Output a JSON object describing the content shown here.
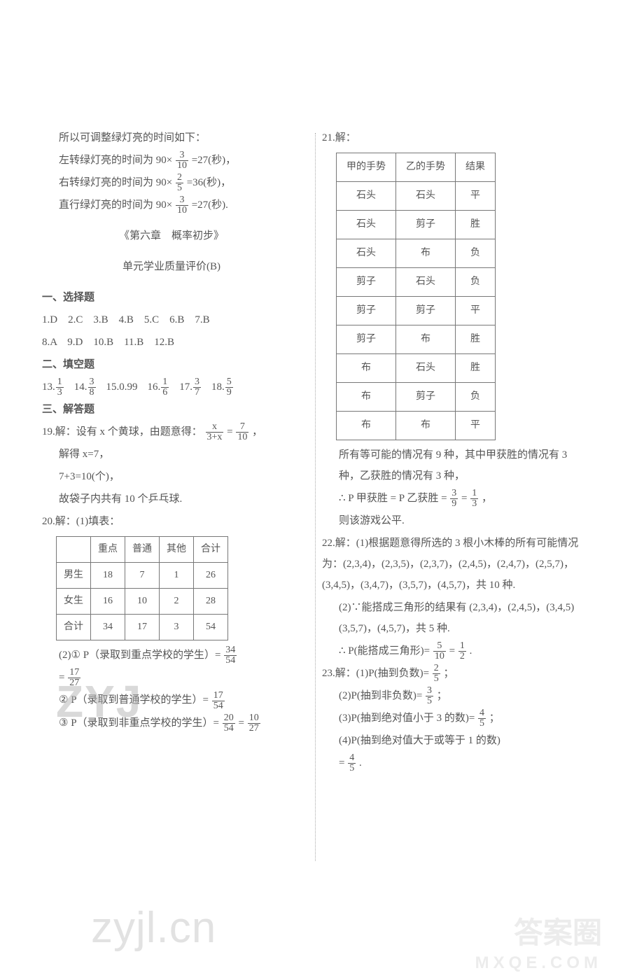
{
  "left": {
    "intro": "所以可调整绿灯亮的时间如下：",
    "l1a": "左转绿灯亮的时间为 90×",
    "l1f": {
      "n": "3",
      "d": "10"
    },
    "l1b": "=27(秒)，",
    "l2a": "右转绿灯亮的时间为 90×",
    "l2f": {
      "n": "2",
      "d": "5"
    },
    "l2b": "=36(秒)，",
    "l3a": "直行绿灯亮的时间为 90×",
    "l3f": {
      "n": "3",
      "d": "10"
    },
    "l3b": "=27(秒).",
    "chapter_title": "《第六章　概率初步》",
    "chapter_sub": "单元学业质量评价(B)",
    "sec1": "一、选择题",
    "mc1": "1.D　2.C　3.B　4.B　5.C　6.B　7.B",
    "mc2": "8.A　9.D　10.B　11.B　12.B",
    "sec2": "二、填空题",
    "fb": [
      {
        "pre": "13.",
        "n": "1",
        "d": "3"
      },
      {
        "pre": "14.",
        "n": "3",
        "d": "8"
      },
      {
        "pre": "15.",
        "text": "0.99"
      },
      {
        "pre": "16.",
        "n": "1",
        "d": "6"
      },
      {
        "pre": "17.",
        "n": "3",
        "d": "7"
      },
      {
        "pre": "18.",
        "n": "5",
        "d": "9"
      }
    ],
    "sec3": "三、解答题",
    "q19a": "19.解：设有 x 个黄球，由题意得：",
    "q19f1": {
      "n": "x",
      "d": "3+x"
    },
    "q19mid": "=",
    "q19f2": {
      "n": "7",
      "d": "10"
    },
    "q19tail": "，",
    "q19b": "解得 x=7，",
    "q19c": "7+3=10(个)，",
    "q19d": "故袋子内共有 10 个乒乓球.",
    "q20a": "20.解：(1)填表：",
    "table20": {
      "columns": [
        "",
        "重点",
        "普通",
        "其他",
        "合计"
      ],
      "rows": [
        [
          "男生",
          "18",
          "7",
          "1",
          "26"
        ],
        [
          "女生",
          "16",
          "10",
          "2",
          "28"
        ],
        [
          "合计",
          "34",
          "17",
          "3",
          "54"
        ]
      ]
    },
    "q20b1": "(2)① P（录取到重点学校的学生）=",
    "q20b1f": {
      "n": "34",
      "d": "54"
    },
    "q20b1eq": "=",
    "q20b1f2": {
      "n": "17",
      "d": "27"
    },
    "q20c1": "② P（录取到普通学校的学生）=",
    "q20c1f": {
      "n": "17",
      "d": "54"
    },
    "q20d1": "③ P（录取到非重点学校的学生）=",
    "q20d1f": {
      "n": "20",
      "d": "54"
    },
    "q20d1eq": "=",
    "q20d1f2": {
      "n": "10",
      "d": "27"
    }
  },
  "right": {
    "q21": "21.解：",
    "table21": {
      "columns": [
        "甲的手势",
        "乙的手势",
        "结果"
      ],
      "rows": [
        [
          "石头",
          "石头",
          "平"
        ],
        [
          "石头",
          "剪子",
          "胜"
        ],
        [
          "石头",
          "布",
          "负"
        ],
        [
          "剪子",
          "石头",
          "负"
        ],
        [
          "剪子",
          "剪子",
          "平"
        ],
        [
          "剪子",
          "布",
          "胜"
        ],
        [
          "布",
          "石头",
          "胜"
        ],
        [
          "布",
          "剪子",
          "负"
        ],
        [
          "布",
          "布",
          "平"
        ]
      ]
    },
    "q21b": "所有等可能的情况有 9 种，其中甲获胜的情况有 3 种，乙获胜的情况有 3 种，",
    "q21c_pre": "∴ P 甲获胜 = P 乙获胜 =",
    "q21cf1": {
      "n": "3",
      "d": "9"
    },
    "q21c_mid": "=",
    "q21cf2": {
      "n": "1",
      "d": "3"
    },
    "q21c_tail": "，",
    "q21d": "则该游戏公平.",
    "q22a": "22.解：(1)根据题意得所选的 3 根小木棒的所有可能情况为：(2,3,4)，(2,3,5)，(2,3,7)，(2,4,5)，(2,4,7)，(2,5,7)，(3,4,5)，(3,4,7)，(3,5,7)，(4,5,7)，共 10 种.",
    "q22b": "(2)∵能搭成三角形的结果有 (2,3,4)，(2,4,5)，(3,4,5)(3,5,7)，(4,5,7)，共 5 种.",
    "q22c_pre": "∴ P(能搭成三角形)=",
    "q22cf1": {
      "n": "5",
      "d": "10"
    },
    "q22c_mid": "=",
    "q22cf2": {
      "n": "1",
      "d": "2"
    },
    "q22c_tail": ".",
    "q23a_pre": "23.解：(1)P(抽到负数)=",
    "q23af": {
      "n": "2",
      "d": "5"
    },
    "q23a_tail": "；",
    "q23b_pre": "(2)P(抽到非负数)=",
    "q23bf": {
      "n": "3",
      "d": "5"
    },
    "q23b_tail": "；",
    "q23c_pre": "(3)P(抽到绝对值小于 3 的数)=",
    "q23cf": {
      "n": "4",
      "d": "5"
    },
    "q23c_tail": "；",
    "q23d_pre": "(4)P(抽到绝对值大于或等于 1 的数)",
    "q23d_eq": "=",
    "q23df": {
      "n": "4",
      "d": "5"
    },
    "q23d_tail": "."
  },
  "watermarks": {
    "w1": "ZYJ",
    "w2": "zyjl.cn",
    "w3": "答案圈",
    "w3b": "MXQE.COM"
  }
}
